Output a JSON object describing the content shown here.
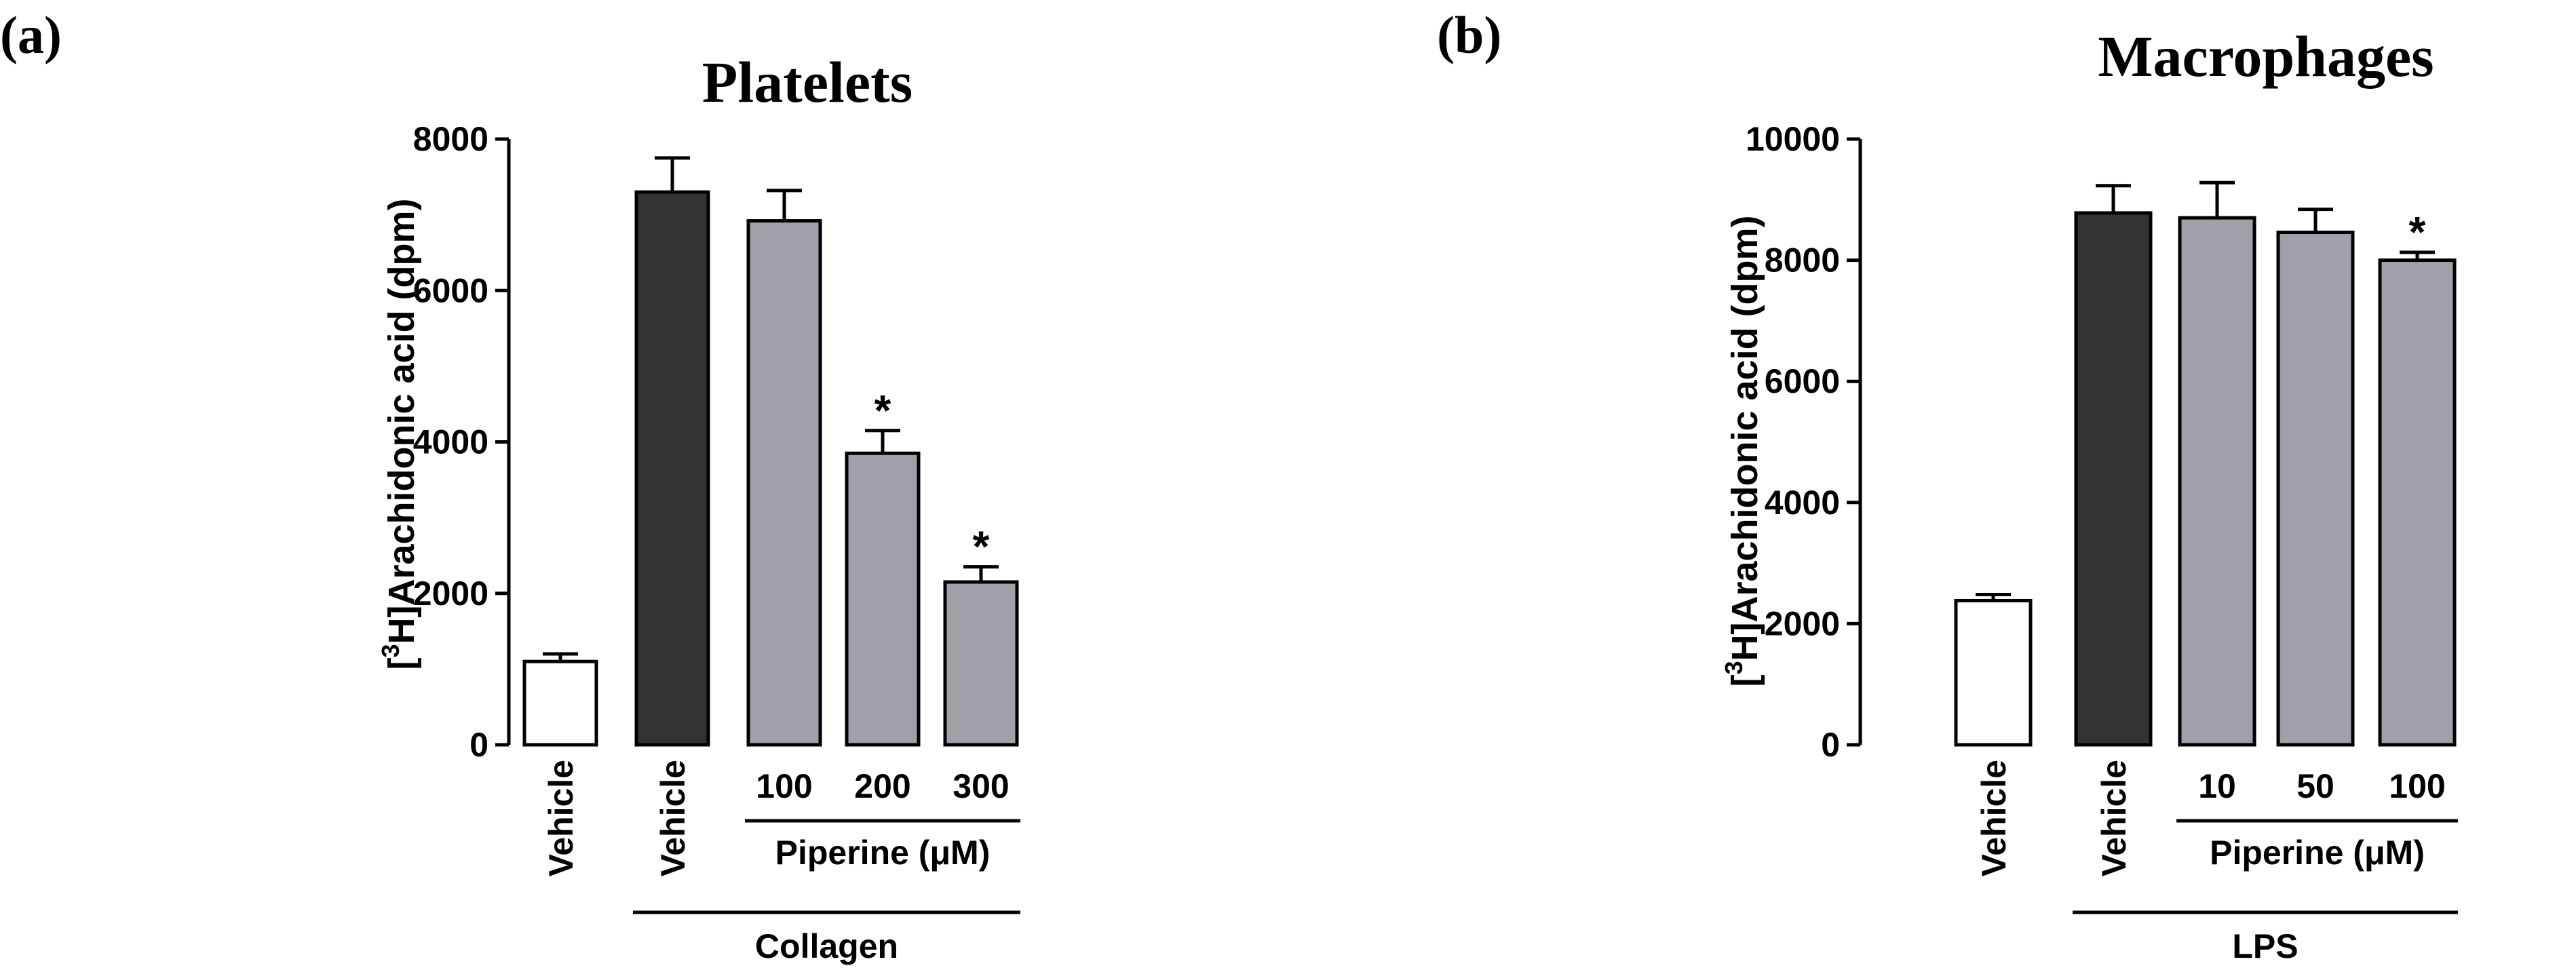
{
  "chart_data": [
    {
      "type": "bar",
      "panel": "(a)",
      "title": "Platelets",
      "ylabel_prefix": "[",
      "ylabel_sup": "3",
      "ylabel_suffix": "H]Arachidonic acid (dpm)",
      "ylim": [
        0,
        8000
      ],
      "yticks": [
        0,
        2000,
        4000,
        6000,
        8000
      ],
      "categories": [
        "Vehicle",
        "Vehicle",
        "100",
        "200",
        "300"
      ],
      "values": [
        1100,
        7300,
        6920,
        3850,
        2150
      ],
      "errors": [
        100,
        450,
        400,
        300,
        200
      ],
      "fills": [
        "#ffffff",
        "#333333",
        "#a0a0a8",
        "#a0a0a8",
        "#a0a0a8"
      ],
      "significant": [
        false,
        false,
        false,
        true,
        true
      ],
      "sig_mark": "*",
      "groups": [
        {
          "label": "Piperine (μM)",
          "from": 2,
          "to": 4
        },
        {
          "label": "Collagen",
          "from": 1,
          "to": 4
        }
      ]
    },
    {
      "type": "bar",
      "panel": "(b)",
      "title": "Macrophages",
      "ylabel_prefix": "[",
      "ylabel_sup": "3",
      "ylabel_suffix": "H]Arachidonic acid (dpm)",
      "ylim": [
        0,
        10000
      ],
      "yticks": [
        0,
        2000,
        4000,
        6000,
        8000,
        10000
      ],
      "categories": [
        "Vehicle",
        "Vehicle",
        "10",
        "50",
        "100"
      ],
      "values": [
        2380,
        8780,
        8700,
        8460,
        8000
      ],
      "errors": [
        100,
        450,
        580,
        380,
        130
      ],
      "fills": [
        "#ffffff",
        "#333333",
        "#a0a0a8",
        "#a0a0a8",
        "#a0a0a8"
      ],
      "significant": [
        false,
        false,
        false,
        false,
        true
      ],
      "sig_mark": "*",
      "groups": [
        {
          "label": "Piperine (μM)",
          "from": 2,
          "to": 4
        },
        {
          "label": "LPS",
          "from": 1,
          "to": 4
        }
      ]
    }
  ]
}
